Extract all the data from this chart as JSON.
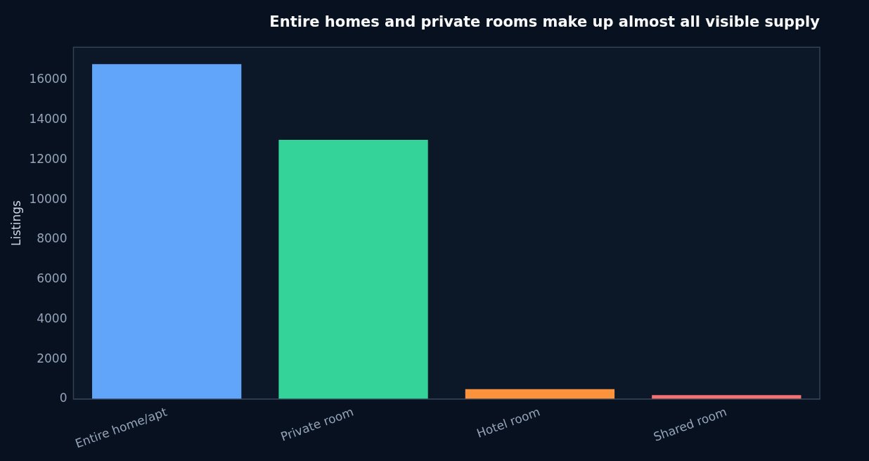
{
  "chart_data": {
    "type": "bar",
    "title": "Entire homes and private rooms make up almost all visible supply",
    "ylabel": "Listings",
    "categories": [
      "Entire home/apt",
      "Private room",
      "Hotel room",
      "Shared room"
    ],
    "values": [
      16800,
      13000,
      500,
      200
    ],
    "colors": [
      "#60a5fa",
      "#34d399",
      "#fb923c",
      "#f87171"
    ],
    "ylim": [
      0,
      17650
    ],
    "yticks": [
      0,
      2000,
      4000,
      6000,
      8000,
      10000,
      12000,
      14000,
      16000
    ],
    "grid": false,
    "legend": false
  }
}
